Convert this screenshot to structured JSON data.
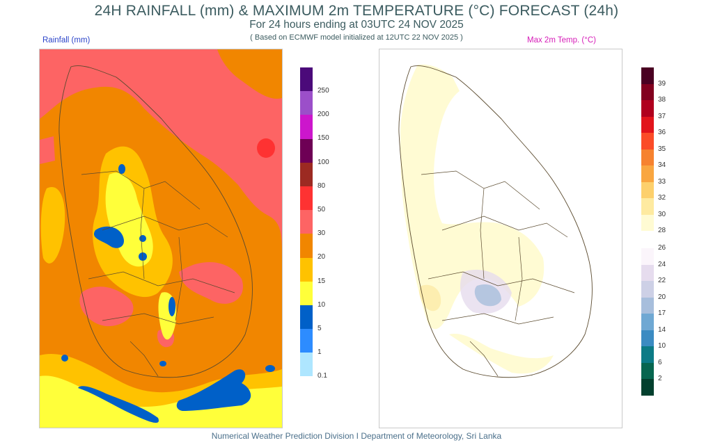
{
  "header": {
    "title": "24H RAINFALL (mm) & MAXIMUM 2m TEMPERATURE (°C) FORECAST (24h)",
    "subtitle": "For 24 hours ending at 03UTC 24 NOV 2025",
    "model_note": "( Based on ECMWF model initialized at 12UTC 22 NOV 2025 )"
  },
  "rainfall_panel": {
    "label": "Rainfall (mm)",
    "legend": {
      "colors": [
        "#4b0a7a",
        "#9b4fc9",
        "#cc16cc",
        "#6e0055",
        "#9c2a22",
        "#fe3232",
        "#fd6464",
        "#f18600",
        "#ffc200",
        "#ffff3a",
        "#0060c8",
        "#2d8cff",
        "#aee6ff"
      ],
      "ticks": [
        "250",
        "200",
        "150",
        "100",
        "80",
        "50",
        "30",
        "20",
        "15",
        "10",
        "5",
        "1",
        "0.1"
      ]
    }
  },
  "temperature_panel": {
    "label": "Max 2m Temp. (°C)",
    "legend_warm": {
      "colors": [
        "#4a0022",
        "#82001f",
        "#b0001e",
        "#e2141c",
        "#fb4c28",
        "#f6822f",
        "#f9a640",
        "#fdd06c",
        "#feeaa0",
        "#fffbd3"
      ],
      "ticks": [
        "39",
        "38",
        "37",
        "36",
        "35",
        "34",
        "33",
        "32",
        "30",
        "28"
      ]
    },
    "legend_cool": {
      "colors": [
        "#fbf5fb",
        "#e6dcee",
        "#cdd0e6",
        "#a7bedc",
        "#6fa8d3",
        "#3b8bc2",
        "#0c7b86",
        "#07664f",
        "#03402e"
      ],
      "ticks": [
        "26",
        "24",
        "22",
        "20",
        "17",
        "14",
        "10",
        "6",
        "2"
      ]
    }
  },
  "footer": "Numerical Weather Prediction Division I Department of Meteorology, Sri Lanka"
}
